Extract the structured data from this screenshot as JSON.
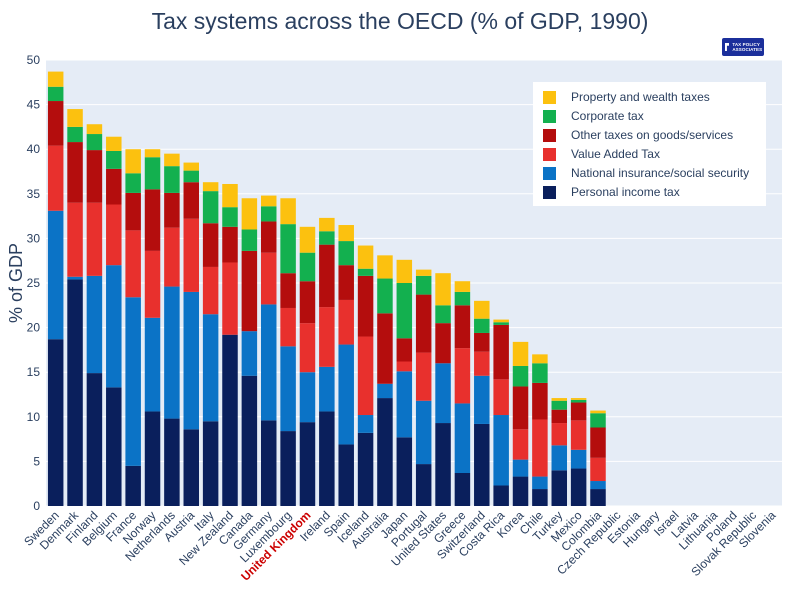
{
  "logo": {
    "text": "TAX POLICY ASSOCIATES"
  },
  "chart_data": {
    "type": "bar",
    "stacked": true,
    "title": "Tax systems across the OECD (% of GDP, 1990)",
    "xlabel": "",
    "ylabel": "% of GDP",
    "ylim": [
      0,
      50
    ],
    "yticks": [
      0,
      5,
      10,
      15,
      20,
      25,
      30,
      35,
      40,
      45,
      50
    ],
    "grid": true,
    "legend_position": "top-right",
    "highlight_category": "United Kingdom",
    "highlight_color": "#cc0000",
    "categories": [
      "Sweden",
      "Denmark",
      "Finland",
      "Belgium",
      "France",
      "Norway",
      "Netherlands",
      "Austria",
      "Italy",
      "New Zealand",
      "Canada",
      "Germany",
      "Luxembourg",
      "United Kingdom",
      "Ireland",
      "Spain",
      "Iceland",
      "Australia",
      "Japan",
      "Portugal",
      "United States",
      "Greece",
      "Switzerland",
      "Costa Rica",
      "Korea",
      "Chile",
      "Turkey",
      "Mexico",
      "Colombia",
      "Czech Republic",
      "Estonia",
      "Hungary",
      "Israel",
      "Latvia",
      "Lithuania",
      "Poland",
      "Slovak Republic",
      "Slovenia"
    ],
    "series": [
      {
        "name": "Personal income tax",
        "color": "#0a1f5c",
        "values": [
          18.7,
          25.4,
          14.9,
          13.3,
          4.5,
          10.6,
          9.8,
          8.6,
          9.5,
          19.2,
          14.6,
          9.6,
          8.4,
          9.4,
          10.6,
          6.9,
          8.2,
          12.1,
          7.7,
          4.7,
          9.3,
          3.7,
          9.2,
          2.3,
          3.3,
          1.9,
          4.0,
          4.2,
          1.9,
          0,
          0,
          0,
          0,
          0,
          0,
          0,
          0,
          0
        ]
      },
      {
        "name": "National insurance/social security",
        "color": "#0b73c6",
        "values": [
          14.4,
          0.3,
          10.9,
          13.7,
          18.9,
          10.5,
          14.8,
          15.4,
          12.0,
          0,
          5.0,
          13.0,
          9.5,
          5.6,
          5.0,
          11.2,
          2.0,
          1.6,
          7.4,
          7.1,
          6.7,
          7.8,
          5.4,
          7.9,
          1.9,
          1.4,
          2.8,
          2.1,
          0.9,
          0,
          0,
          0,
          0,
          0,
          0,
          0,
          0,
          0
        ]
      },
      {
        "name": "Value Added Tax",
        "color": "#e8302d",
        "values": [
          7.3,
          8.3,
          8.2,
          6.8,
          7.5,
          7.5,
          6.6,
          8.2,
          5.3,
          8.1,
          0,
          5.8,
          4.3,
          5.5,
          6.7,
          5.0,
          8.8,
          0,
          1.1,
          5.4,
          0,
          6.2,
          2.7,
          4.0,
          3.4,
          6.4,
          2.5,
          3.3,
          2.6,
          0,
          0,
          0,
          0,
          0,
          0,
          0,
          0,
          0
        ]
      },
      {
        "name": "Other taxes on goods/services",
        "color": "#b40d0d",
        "values": [
          5.0,
          6.8,
          5.9,
          4.0,
          4.2,
          6.9,
          3.9,
          4.1,
          4.9,
          4.0,
          9.0,
          3.5,
          3.9,
          4.7,
          7.0,
          3.9,
          6.8,
          7.9,
          2.6,
          6.5,
          4.5,
          4.8,
          2.1,
          6.1,
          4.8,
          4.1,
          1.5,
          2.0,
          3.4,
          0,
          0,
          0,
          0,
          0,
          0,
          0,
          0,
          0
        ]
      },
      {
        "name": "Corporate tax",
        "color": "#13b04f",
        "values": [
          1.6,
          1.7,
          1.8,
          2.0,
          2.2,
          3.6,
          3.0,
          1.3,
          3.6,
          2.2,
          2.4,
          1.7,
          5.5,
          3.2,
          1.5,
          2.7,
          0.8,
          3.9,
          6.2,
          2.1,
          2.0,
          1.5,
          1.6,
          0.3,
          2.3,
          2.2,
          1.0,
          0.3,
          1.6,
          0,
          0,
          0,
          0,
          0,
          0,
          0,
          0,
          0
        ]
      },
      {
        "name": "Property and wealth taxes",
        "color": "#fcc10f",
        "values": [
          1.7,
          2.0,
          1.1,
          1.6,
          2.7,
          0.9,
          1.4,
          0.9,
          1.0,
          2.6,
          3.5,
          1.2,
          2.9,
          2.9,
          1.5,
          1.8,
          2.6,
          2.6,
          2.6,
          0.7,
          3.6,
          1.2,
          2.0,
          0.3,
          2.7,
          1.0,
          0.3,
          0.2,
          0.3,
          0,
          0,
          0,
          0,
          0,
          0,
          0,
          0,
          0
        ]
      }
    ]
  }
}
